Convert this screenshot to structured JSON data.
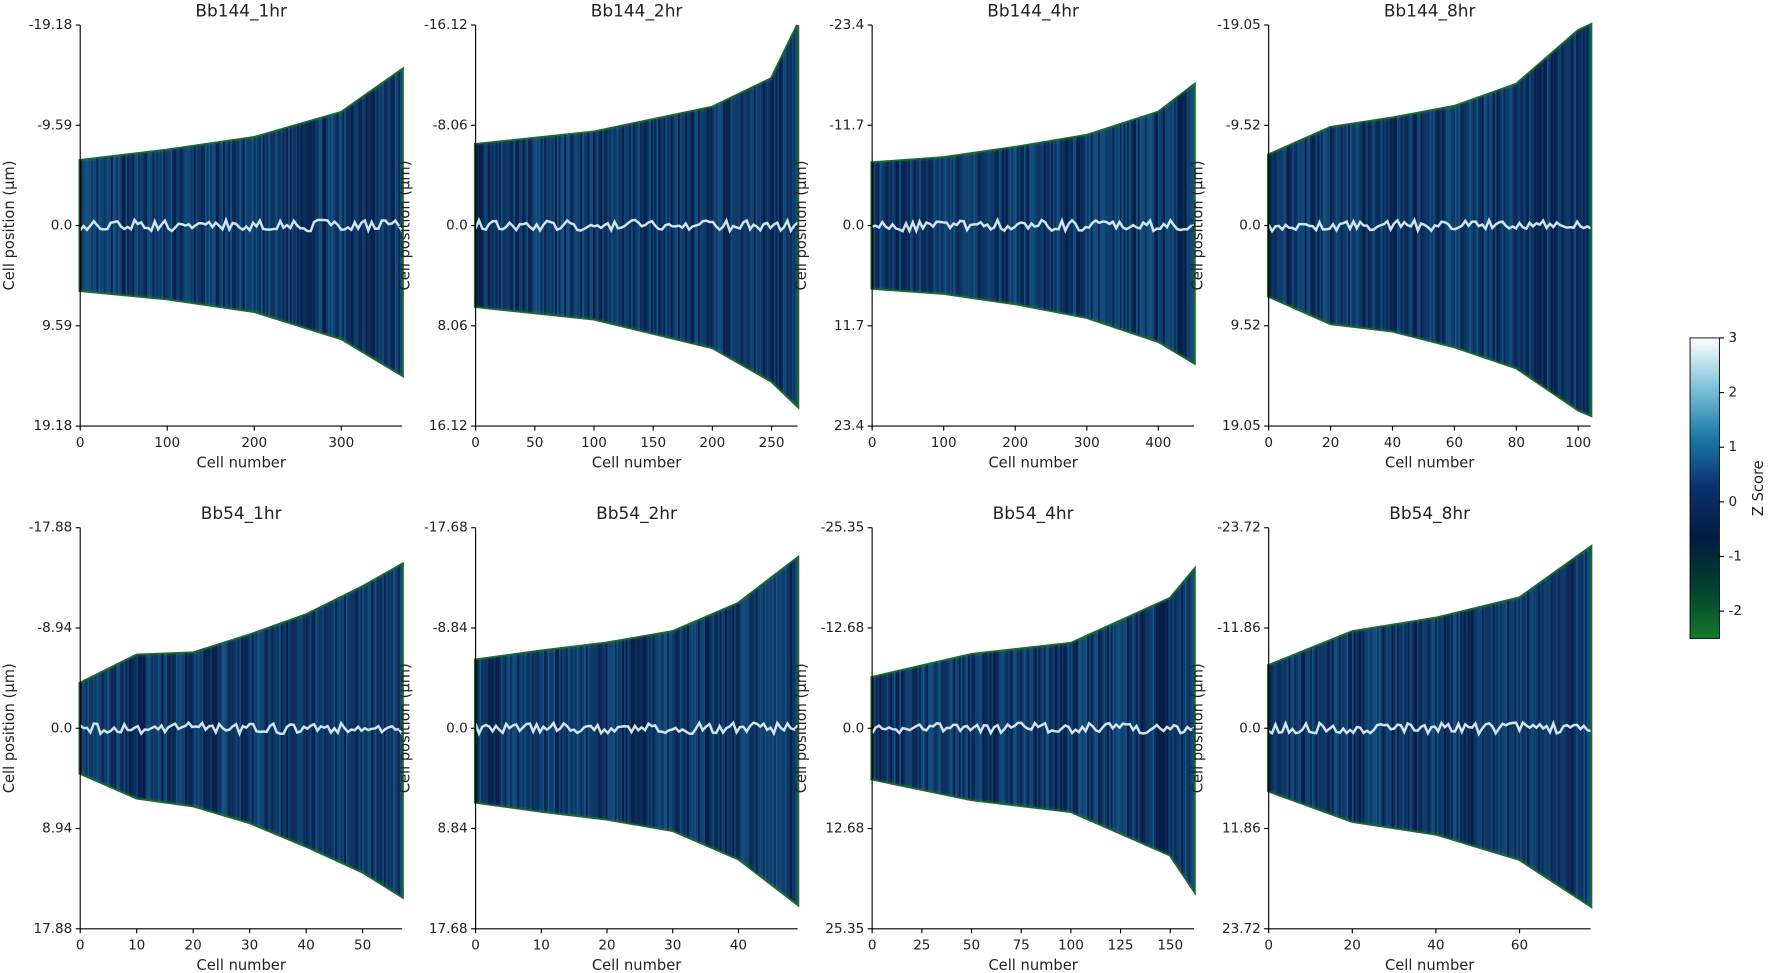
{
  "chart_data": [
    {
      "type": "heatmap",
      "title": "Bb144_1hr",
      "xlabel": "Cell number",
      "ylabel": "Cell position (μm)",
      "yaxis_inverted": true,
      "xlim": [
        0,
        370
      ],
      "xticks": [
        0,
        100,
        200,
        300
      ],
      "ylim": [
        -19.18,
        19.18
      ],
      "yticks": [
        -19.18,
        -9.59,
        {
          "value": 0,
          "label": "0.0"
        },
        9.59,
        19.18
      ],
      "envelope_x": [
        0,
        100,
        200,
        300,
        370
      ],
      "envelope_upper": [
        -6.2,
        -7.2,
        -8.4,
        -10.8,
        -14.9
      ],
      "envelope_lower": [
        6.2,
        7.0,
        8.2,
        10.8,
        14.3
      ]
    },
    {
      "type": "heatmap",
      "title": "Bb144_2hr",
      "xlabel": "Cell number",
      "ylabel": "Cell position (μm)",
      "yaxis_inverted": true,
      "xlim": [
        0,
        272
      ],
      "xticks": [
        0,
        50,
        100,
        150,
        200,
        250
      ],
      "ylim": [
        -16.12,
        16.12
      ],
      "yticks": [
        -16.12,
        -8.06,
        {
          "value": 0,
          "label": "0.0"
        },
        8.06,
        16.12
      ],
      "envelope_x": [
        0,
        100,
        200,
        250,
        272
      ],
      "envelope_upper": [
        -6.5,
        -7.5,
        -9.5,
        -11.8,
        -16.1
      ],
      "envelope_lower": [
        6.5,
        7.5,
        9.8,
        12.5,
        14.5
      ]
    },
    {
      "type": "heatmap",
      "title": "Bb144_4hr",
      "xlabel": "Cell number",
      "ylabel": "Cell position (μm)",
      "yaxis_inverted": true,
      "xlim": [
        0,
        450
      ],
      "xticks": [
        0,
        100,
        200,
        300,
        400
      ],
      "ylim": [
        -23.4,
        23.4
      ],
      "yticks": [
        -23.4,
        -11.7,
        {
          "value": 0,
          "label": "0.0"
        },
        11.7,
        23.4
      ],
      "envelope_x": [
        0,
        100,
        200,
        300,
        400,
        450
      ],
      "envelope_upper": [
        -7.3,
        -7.9,
        -9.1,
        -10.5,
        -13.2,
        -16.4
      ],
      "envelope_lower": [
        7.3,
        7.9,
        9.1,
        10.7,
        13.5,
        16.0
      ]
    },
    {
      "type": "heatmap",
      "title": "Bb144_8hr",
      "xlabel": "Cell number",
      "ylabel": "Cell position (μm)",
      "yaxis_inverted": true,
      "xlim": [
        0,
        104
      ],
      "xticks": [
        0,
        20,
        40,
        60,
        80,
        100
      ],
      "ylim": [
        -19.05,
        19.05
      ],
      "yticks": [
        -19.05,
        -9.52,
        {
          "value": 0,
          "label": "0.0"
        },
        9.52,
        19.05
      ],
      "envelope_x": [
        0,
        20,
        40,
        60,
        80,
        100,
        104
      ],
      "envelope_upper": [
        -6.7,
        -9.3,
        -10.2,
        -11.3,
        -13.4,
        -18.5,
        -19.05
      ],
      "envelope_lower": [
        6.7,
        9.3,
        10.0,
        11.5,
        13.5,
        17.5,
        18.0
      ]
    },
    {
      "type": "heatmap",
      "title": "Bb54_1hr",
      "xlabel": "Cell number",
      "ylabel": "Cell position (μm)",
      "yaxis_inverted": true,
      "xlim": [
        0,
        57
      ],
      "xticks": [
        0,
        10,
        20,
        30,
        40,
        50
      ],
      "ylim": [
        -17.88,
        17.88
      ],
      "yticks": [
        -17.88,
        -8.94,
        {
          "value": 0,
          "label": "0.0"
        },
        8.94,
        17.88
      ],
      "envelope_x": [
        0,
        10,
        20,
        30,
        40,
        50,
        57
      ],
      "envelope_upper": [
        -4.0,
        -6.5,
        -6.7,
        -8.3,
        -10.1,
        -12.6,
        -14.6
      ],
      "envelope_lower": [
        4.0,
        6.2,
        6.9,
        8.4,
        10.5,
        12.8,
        15.0
      ]
    },
    {
      "type": "heatmap",
      "title": "Bb54_2hr",
      "xlabel": "Cell number",
      "ylabel": "Cell position (μm)",
      "yaxis_inverted": true,
      "xlim": [
        0,
        49
      ],
      "xticks": [
        0,
        10,
        20,
        30,
        40
      ],
      "ylim": [
        -17.68,
        17.68
      ],
      "yticks": [
        -17.68,
        -8.84,
        {
          "value": 0,
          "label": "0.0"
        },
        8.84,
        17.68
      ],
      "envelope_x": [
        0,
        10,
        20,
        30,
        40,
        49
      ],
      "envelope_upper": [
        -6.0,
        -6.8,
        -7.5,
        -8.5,
        -11.0,
        -15.0
      ],
      "envelope_lower": [
        6.5,
        7.3,
        8.0,
        9.0,
        11.5,
        15.5
      ]
    },
    {
      "type": "heatmap",
      "title": "Bb54_4hr",
      "xlabel": "Cell number",
      "ylabel": "Cell position (μm)",
      "yaxis_inverted": true,
      "xlim": [
        0,
        162
      ],
      "xticks": [
        0,
        25,
        50,
        75,
        100,
        125,
        150
      ],
      "ylim": [
        -25.35,
        25.35
      ],
      "yticks": [
        -25.35,
        -12.68,
        {
          "value": 0,
          "label": "0.0"
        },
        12.68,
        25.35
      ],
      "envelope_x": [
        0,
        50,
        100,
        150,
        162
      ],
      "envelope_upper": [
        -6.4,
        -9.3,
        -10.7,
        -16.4,
        -20.0
      ],
      "envelope_lower": [
        6.4,
        9.0,
        10.5,
        16.0,
        20.5
      ]
    },
    {
      "type": "heatmap",
      "title": "Bb54_8hr",
      "xlabel": "Cell number",
      "ylabel": "Cell position (μm)",
      "yaxis_inverted": true,
      "xlim": [
        0,
        77
      ],
      "xticks": [
        0,
        20,
        40,
        60
      ],
      "ylim": [
        -23.72,
        23.72
      ],
      "yticks": [
        -23.72,
        -11.86,
        {
          "value": 0,
          "label": "0.0"
        },
        11.86,
        23.72
      ],
      "envelope_x": [
        0,
        20,
        40,
        60,
        77
      ],
      "envelope_upper": [
        -7.4,
        -11.4,
        -13.0,
        -15.4,
        -21.4
      ],
      "envelope_lower": [
        7.4,
        11.0,
        12.5,
        15.5,
        21.0
      ]
    },
    {
      "type": "colorbar",
      "label": "Z Score",
      "ylim": [
        -2.5,
        3
      ],
      "yticks": [
        -2,
        -1,
        0,
        1,
        2,
        3
      ],
      "colors": [
        "#127a2c",
        "#03402e",
        "#021c40",
        "#0b2f70",
        "#1b78a6",
        "#7cc2d8",
        "#ffffff"
      ]
    }
  ]
}
